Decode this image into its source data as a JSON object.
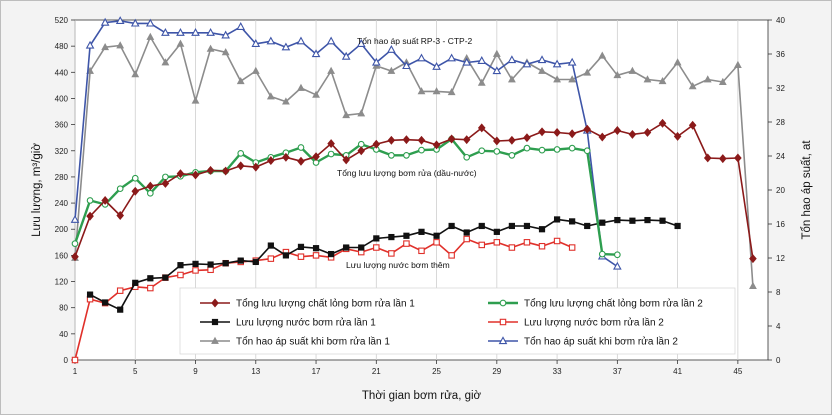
{
  "chart_data": {
    "type": "line",
    "xlabel": "Thời gian bơm rửa, giờ",
    "ylabel_left": "Lưu lượng, m³/giờ",
    "ylabel_right": "Tổn hao áp suất, at",
    "x_ticks": [
      1,
      5,
      9,
      13,
      17,
      21,
      25,
      29,
      33,
      37,
      41,
      45
    ],
    "xlim": [
      1,
      47
    ],
    "ylim_left": [
      0,
      520
    ],
    "ylim_right": [
      0,
      40
    ],
    "y_ticks_left": [
      0,
      40,
      80,
      120,
      160,
      200,
      240,
      280,
      320,
      360,
      400,
      440,
      480,
      520
    ],
    "y_ticks_right": [
      0,
      4,
      8,
      12,
      16,
      20,
      24,
      28,
      32,
      36,
      40
    ],
    "grid": "vertical",
    "annotations": [
      {
        "text": "Tổn hao áp suất RP-3 - CTP-2"
      },
      {
        "text": "Tổng lưu lượng bơm rửa (dầu-nước)"
      },
      {
        "text": "Lưu lượng nước bơm thêm"
      }
    ],
    "legend_position": "bottom-center",
    "series": [
      {
        "name": "Tổng lưu lượng chất lỏng bơm rửa lần 1",
        "axis": "left",
        "color": "#8b1a1a",
        "marker": "diamond-filled",
        "x": [
          1,
          2,
          3,
          4,
          5,
          6,
          7,
          8,
          9,
          10,
          11,
          12,
          13,
          14,
          15,
          16,
          17,
          18,
          19,
          20,
          21,
          22,
          23,
          24,
          25,
          26,
          27,
          28,
          29,
          30,
          31,
          32,
          33,
          34,
          35,
          36,
          37,
          38,
          39,
          40,
          41,
          42,
          43,
          44,
          45,
          46
        ],
        "y": [
          158,
          220,
          244,
          221,
          258,
          266,
          270,
          285,
          283,
          290,
          289,
          297,
          295,
          305,
          310,
          304,
          311,
          331,
          306,
          320,
          330,
          336,
          337,
          336,
          329,
          338,
          337,
          355,
          335,
          336,
          340,
          349,
          348,
          346,
          353,
          341,
          351,
          345,
          348,
          362,
          342,
          359,
          309,
          308,
          309,
          155
        ]
      },
      {
        "name": "Tổng lưu lượng chất lỏng bơm rửa lần 2",
        "axis": "left",
        "color": "#2e9e4f",
        "marker": "circle-open",
        "x": [
          1,
          2,
          3,
          4,
          5,
          6,
          7,
          8,
          9,
          10,
          11,
          12,
          13,
          14,
          15,
          16,
          17,
          18,
          19,
          20,
          21,
          22,
          23,
          24,
          25,
          26,
          27,
          28,
          29,
          30,
          31,
          32,
          33,
          34,
          35,
          36,
          37
        ],
        "y": [
          178,
          244,
          238,
          262,
          278,
          255,
          280,
          281,
          287,
          289,
          289,
          316,
          302,
          310,
          317,
          325,
          302,
          315,
          313,
          330,
          322,
          313,
          313,
          321,
          322,
          338,
          310,
          320,
          319,
          313,
          324,
          321,
          322,
          324,
          320,
          162,
          161
        ]
      },
      {
        "name": "Lưu lượng nước bơm rửa lần 1",
        "axis": "left",
        "color": "#111111",
        "marker": "square-filled",
        "x": [
          2,
          3,
          4,
          5,
          6,
          7,
          8,
          9,
          10,
          11,
          12,
          13,
          14,
          15,
          16,
          17,
          18,
          19,
          20,
          21,
          22,
          23,
          24,
          25,
          26,
          27,
          28,
          29,
          30,
          31,
          32,
          33,
          34,
          35,
          36,
          37,
          38,
          39,
          40,
          41
        ],
        "y": [
          100,
          88,
          77,
          118,
          125,
          126,
          145,
          147,
          146,
          148,
          152,
          150,
          175,
          160,
          173,
          171,
          162,
          172,
          172,
          186,
          188,
          190,
          196,
          190,
          205,
          195,
          205,
          196,
          205,
          205,
          200,
          215,
          212,
          205,
          210,
          214,
          213,
          214,
          213,
          205
        ]
      },
      {
        "name": "Lưu lượng nước bơm rửa lần 2",
        "axis": "left",
        "color": "#e0302a",
        "marker": "square-open",
        "x": [
          1,
          2,
          3,
          4,
          5,
          6,
          7,
          8,
          9,
          10,
          11,
          12,
          13,
          14,
          15,
          16,
          17,
          18,
          19,
          20,
          21,
          22,
          23,
          24,
          25,
          26,
          27,
          28,
          29,
          30,
          31,
          32,
          33,
          34
        ],
        "y": [
          0,
          93,
          87,
          106,
          112,
          110,
          126,
          130,
          137,
          138,
          148,
          150,
          152,
          155,
          165,
          158,
          160,
          157,
          170,
          165,
          172,
          163,
          178,
          167,
          180,
          160,
          185,
          176,
          180,
          172,
          180,
          174,
          182,
          172
        ]
      },
      {
        "name": "Tổn hao áp suất khi bơm rửa lần 1",
        "axis": "right",
        "color": "#8c8c8c",
        "marker": "triangle-filled",
        "x": [
          1,
          2,
          3,
          4,
          5,
          6,
          7,
          8,
          9,
          10,
          11,
          12,
          13,
          14,
          15,
          16,
          17,
          18,
          19,
          20,
          21,
          22,
          23,
          24,
          25,
          26,
          27,
          28,
          29,
          30,
          31,
          32,
          33,
          34,
          35,
          36,
          37,
          38,
          39,
          40,
          41,
          42,
          43,
          44,
          45,
          46
        ],
        "y": [
          12,
          34,
          36.8,
          37,
          33.6,
          38,
          35,
          37.2,
          30.5,
          36.6,
          36.2,
          32.8,
          34,
          31,
          30.4,
          32,
          31.2,
          34,
          28.8,
          29,
          34.6,
          34,
          35,
          31.6,
          31.6,
          31.5,
          35.5,
          32.6,
          36,
          33,
          35,
          34,
          33,
          33,
          33.8,
          35.8,
          33.5,
          34,
          33,
          32.8,
          35,
          32.2,
          33,
          32.7,
          34.7,
          8.7
        ]
      },
      {
        "name": "Tổn hao áp suất khi bơm rửa lần 2",
        "axis": "right",
        "color": "#3e55a8",
        "marker": "triangle-open",
        "x": [
          1,
          2,
          3,
          4,
          5,
          6,
          7,
          8,
          9,
          10,
          11,
          12,
          13,
          14,
          15,
          16,
          17,
          18,
          19,
          20,
          21,
          22,
          23,
          24,
          25,
          26,
          27,
          28,
          29,
          30,
          31,
          32,
          33,
          34,
          35,
          36,
          37
        ],
        "y": [
          16.5,
          37,
          39.7,
          39.9,
          39.6,
          39.6,
          38.5,
          38.5,
          38.5,
          38.5,
          38.2,
          39.2,
          37.2,
          37.5,
          36.8,
          37.5,
          36,
          37.5,
          35.7,
          37.2,
          35,
          36.5,
          34.6,
          35.5,
          34.5,
          35.5,
          35,
          35.2,
          34,
          35.3,
          34.8,
          35.3,
          34.8,
          35,
          27,
          12.2,
          11
        ]
      }
    ]
  }
}
